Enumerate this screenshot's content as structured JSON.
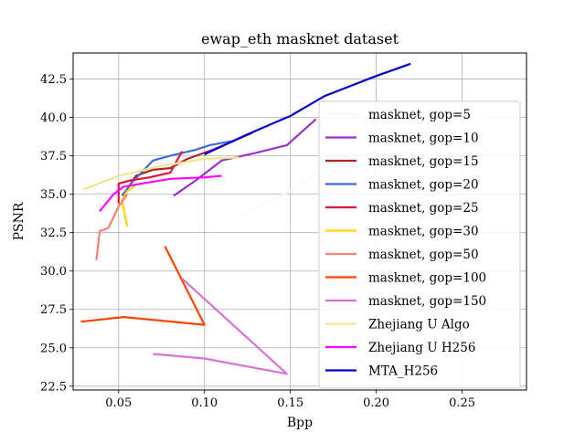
{
  "chart_data": {
    "type": "line",
    "title": "ewap_eth masknet dataset",
    "xlabel": "Bpp",
    "ylabel": "PSNR",
    "xlim": [
      0.0235,
      0.2875
    ],
    "ylim": [
      22.25,
      44.2
    ],
    "xticks": [
      "0.05",
      "0.10",
      "0.15",
      "0.20",
      "0.25"
    ],
    "xtick_values": [
      0.05,
      0.1,
      0.15,
      0.2,
      0.25
    ],
    "yticks": [
      "22.5",
      "25.0",
      "27.5",
      "30.0",
      "32.5",
      "35.0",
      "37.5",
      "40.0",
      "42.5"
    ],
    "ytick_values": [
      22.5,
      25.0,
      27.5,
      30.0,
      32.5,
      35.0,
      37.5,
      40.0,
      42.5
    ],
    "grid": true,
    "legend_position": "right",
    "series": [
      {
        "name": "masknet, gop=5",
        "color": "#f0fff0",
        "points": [
          [
            0.12,
            33.6
          ],
          [
            0.15,
            35.2
          ],
          [
            0.19,
            38.2
          ],
          [
            0.22,
            39.4
          ],
          [
            0.28,
            40.3
          ]
        ]
      },
      {
        "name": "masknet, gop=10",
        "color": "#9932cc",
        "points": [
          [
            0.082,
            34.9
          ],
          [
            0.095,
            35.9
          ],
          [
            0.11,
            37.2
          ],
          [
            0.13,
            37.7
          ],
          [
            0.148,
            38.2
          ],
          [
            0.165,
            39.9
          ]
        ]
      },
      {
        "name": "masknet, gop=15",
        "color": "#b22222",
        "points": [
          [
            0.056,
            35.5
          ],
          [
            0.06,
            36.2
          ],
          [
            0.07,
            36.6
          ],
          [
            0.08,
            36.7
          ],
          [
            0.09,
            37.3
          ],
          [
            0.105,
            37.9
          ],
          [
            0.128,
            39.0
          ]
        ]
      },
      {
        "name": "masknet, gop=20",
        "color": "#4169e1",
        "points": [
          [
            0.052,
            34.9
          ],
          [
            0.058,
            35.8
          ],
          [
            0.07,
            37.2
          ],
          [
            0.08,
            37.5
          ],
          [
            0.095,
            37.9
          ],
          [
            0.103,
            38.2
          ],
          [
            0.118,
            38.5
          ]
        ]
      },
      {
        "name": "masknet, gop=25",
        "color": "#dc143c",
        "points": [
          [
            0.05,
            34.4
          ],
          [
            0.05,
            35.7
          ],
          [
            0.057,
            35.9
          ],
          [
            0.068,
            36.1
          ],
          [
            0.08,
            36.4
          ],
          [
            0.087,
            37.8
          ]
        ]
      },
      {
        "name": "masknet, gop=30",
        "color": "#ffd700",
        "points": [
          [
            0.055,
            32.9
          ],
          [
            0.052,
            34.6
          ],
          [
            0.055,
            35.2
          ],
          [
            0.06,
            35.6
          ]
        ]
      },
      {
        "name": "masknet, gop=50",
        "color": "#fa8072",
        "points": [
          [
            0.037,
            30.7
          ],
          [
            0.039,
            32.6
          ],
          [
            0.044,
            32.8
          ],
          [
            0.05,
            34.2
          ],
          [
            0.055,
            35.0
          ]
        ]
      },
      {
        "name": "masknet, gop=100",
        "color": "#ff4500",
        "points": [
          [
            0.028,
            26.7
          ],
          [
            0.053,
            27.0
          ],
          [
            0.1,
            26.5
          ],
          [
            0.077,
            31.6
          ]
        ]
      },
      {
        "name": "masknet, gop=150",
        "color": "#da70d6",
        "points": [
          [
            0.07,
            24.6
          ],
          [
            0.1,
            24.3
          ],
          [
            0.148,
            23.3
          ],
          [
            0.087,
            29.5
          ]
        ]
      },
      {
        "name": "Zhejiang U Algo",
        "color": "#f0e68c",
        "points": [
          [
            0.029,
            35.3
          ],
          [
            0.05,
            36.2
          ],
          [
            0.073,
            36.8
          ],
          [
            0.1,
            37.3
          ],
          [
            0.12,
            37.4
          ]
        ]
      },
      {
        "name": "Zhejiang U H256",
        "color": "#ff00ff",
        "points": [
          [
            0.039,
            33.9
          ],
          [
            0.047,
            35.0
          ],
          [
            0.053,
            35.5
          ],
          [
            0.08,
            36.0
          ],
          [
            0.1,
            36.1
          ],
          [
            0.11,
            36.2
          ]
        ]
      },
      {
        "name": "MTA_H256",
        "color": "#0000cd",
        "points": [
          [
            0.1,
            37.6
          ],
          [
            0.125,
            38.9
          ],
          [
            0.15,
            40.1
          ],
          [
            0.17,
            41.4
          ],
          [
            0.2,
            42.7
          ],
          [
            0.22,
            43.5
          ]
        ]
      }
    ]
  }
}
